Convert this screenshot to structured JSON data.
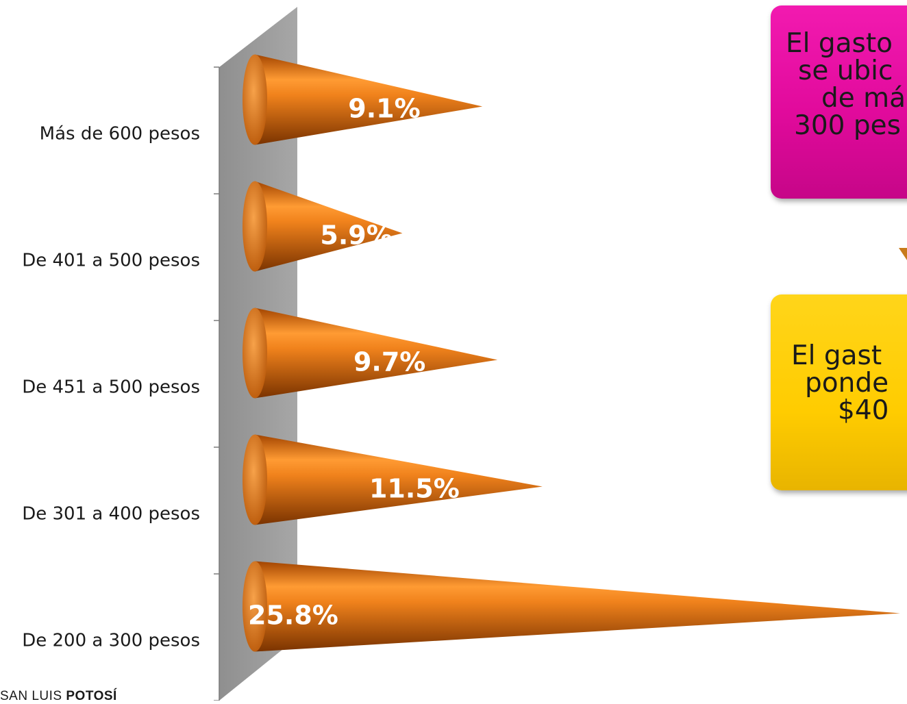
{
  "chart_data": {
    "type": "bar",
    "orientation": "horizontal",
    "categories": [
      "Más de 600 pesos",
      "De 401 a 500 pesos",
      "De 451 a 500 pesos",
      "De 301 a 400 pesos",
      "De 200 a 300 pesos"
    ],
    "values": [
      9.1,
      5.9,
      9.7,
      11.5,
      25.8
    ],
    "value_labels": [
      "9.1%",
      "5.9%",
      "9.7%",
      "11.5%",
      "25.8%"
    ],
    "title": "",
    "xlabel": "",
    "ylabel": "",
    "xlim": [
      0,
      25.8
    ],
    "grid": false,
    "legend": "none",
    "bar_color": "#e8720c",
    "axis_wall_color": "#9b9b9b"
  },
  "callouts": {
    "pink": {
      "lines": [
        "El gasto",
        "se ubic",
        "de má",
        "300 pes"
      ],
      "color": "#e10a9c"
    },
    "yellow": {
      "lines": [
        "El gast",
        "ponde",
        "$40"
      ],
      "color": "#ffcc00"
    }
  },
  "footer": {
    "logo_light": "SAN LUIS ",
    "logo_bold": "POTOSÍ"
  }
}
